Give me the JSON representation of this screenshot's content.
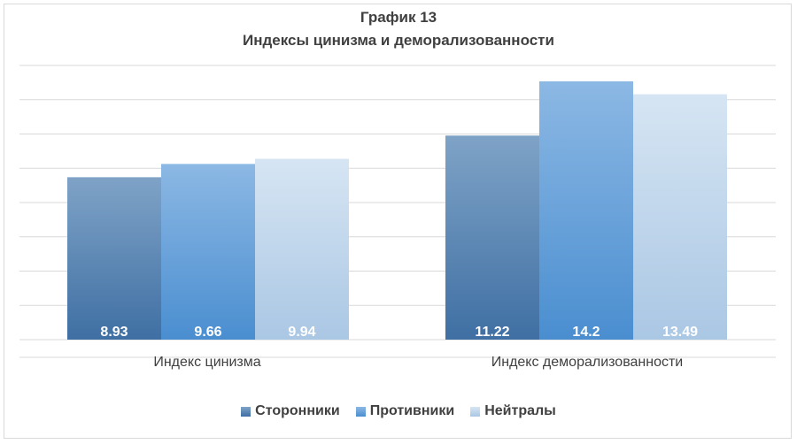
{
  "chart_data": {
    "type": "bar",
    "title": "График 13",
    "subtitle": "Индексы цинизма и деморализованности",
    "categories": [
      "Индекс цинизма",
      "Индекс деморализованности"
    ],
    "series": [
      {
        "name": "Сторонники",
        "values": [
          8.93,
          11.22
        ],
        "labels": [
          "8.93",
          "11.22"
        ],
        "color_top": "#7fa3c7",
        "color_bottom": "#3f6fa3"
      },
      {
        "name": "Противники",
        "values": [
          9.66,
          14.2
        ],
        "labels": [
          "9.66",
          "14.2"
        ],
        "color_top": "#8cb8e4",
        "color_bottom": "#4a8ed0"
      },
      {
        "name": "Нейтралы",
        "values": [
          9.94,
          13.49
        ],
        "labels": [
          "9.94",
          "13.49"
        ],
        "color_top": "#d6e5f3",
        "color_bottom": "#aac7e4"
      }
    ],
    "ylim": [
      0,
      15
    ],
    "gridlines": 8,
    "legend_position": "bottom",
    "grid": true
  }
}
